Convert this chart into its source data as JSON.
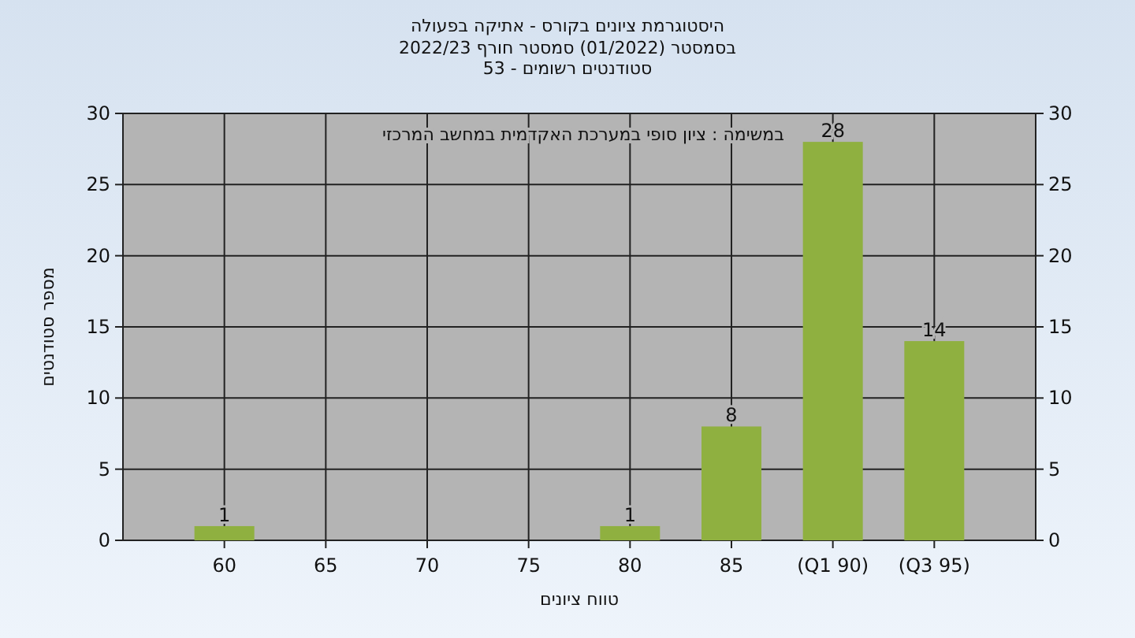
{
  "chart_data": {
    "type": "bar",
    "title": "היסטוגרמת ציונים בקורס - אתיקה בפעולה",
    "subtitle": "בסמסטר  (01/2022)  סמסטר חורף 2022/23\nסטודנטים רשומים - 53",
    "xlabel": "טווח ציונים",
    "ylabel": "מספר סטודנטים",
    "annotations": [
      "במשימה : ציון סופי במערכת האקדמית במחשב המרכזי"
    ],
    "categories": [
      "60",
      "65",
      "70",
      "75",
      "80",
      "85",
      "(Q1 90)",
      "(Q3 95)"
    ],
    "values": [
      1,
      0,
      0,
      0,
      1,
      8,
      28,
      14
    ],
    "value_labels": [
      "1",
      null,
      null,
      null,
      "1",
      "8",
      "28",
      "14"
    ],
    "color": "#8fb040",
    "ylim": [
      0,
      30
    ],
    "yticks": [
      0,
      5,
      10,
      15,
      20,
      25,
      30
    ],
    "y2lim": [
      0,
      30
    ],
    "y2ticks": [
      0,
      5,
      10,
      15,
      20,
      25,
      30
    ],
    "grid": true
  }
}
